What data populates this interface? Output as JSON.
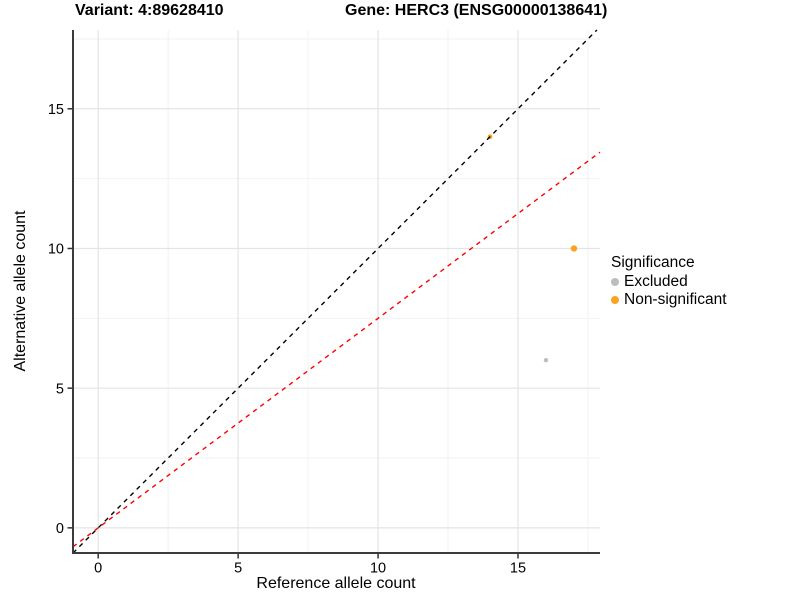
{
  "title": {
    "variant": "Variant: 4:89628410",
    "gene": "Gene: HERC3 (ENSG00000138641)"
  },
  "chart_data": {
    "type": "scatter",
    "titles": [
      "Variant: 4:89628410",
      "Gene: HERC3 (ENSG00000138641)"
    ],
    "xlabel": "Reference allele count",
    "ylabel": "Alternative allele count",
    "xlim": [
      -0.9,
      17.93
    ],
    "ylim": [
      -0.9,
      17.82
    ],
    "x_major_ticks": [
      0,
      5,
      10,
      15
    ],
    "x_minor_ticks": [
      2.5,
      7.5,
      12.5,
      17.5
    ],
    "y_major_ticks": [
      0,
      5,
      10,
      15
    ],
    "y_minor_ticks": [
      2.5,
      7.5,
      12.5,
      17.5
    ],
    "grid": "on",
    "legend": {
      "title": "Significance",
      "position": "right-center",
      "entries": [
        {
          "label": "Excluded",
          "color": "#BDBDBD"
        },
        {
          "label": "Non-significant",
          "color": "#F9A320"
        }
      ]
    },
    "series": [
      {
        "name": "Excluded",
        "color": "#BDBDBD",
        "points": [
          {
            "x": 16,
            "y": 6,
            "r": 2.2
          }
        ]
      },
      {
        "name": "Non-significant",
        "color": "#F9A320",
        "points": [
          {
            "x": 14,
            "y": 14,
            "r": 2.4
          },
          {
            "x": 17,
            "y": 10,
            "r": 3.2
          }
        ]
      }
    ],
    "lines": [
      {
        "name": "identity-line",
        "color": "#000000",
        "dash": "dashed",
        "slope": 1,
        "intercept": 0
      },
      {
        "name": "ratio-line",
        "color": "#FF0000",
        "dash": "dashed",
        "slope": 0.75,
        "intercept": 0
      }
    ]
  },
  "colors": {
    "background": "#FFFFFF",
    "grid_major": "#E4E4E4",
    "grid_minor": "#F2F2F2",
    "axis_line": "#3B3B3B",
    "tick": "#333333",
    "tick_label": "#000000"
  }
}
